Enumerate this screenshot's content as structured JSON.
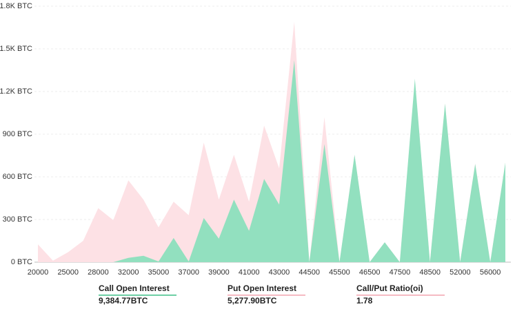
{
  "chart_data": {
    "type": "area",
    "categories": [
      "20000",
      null,
      "25000",
      null,
      "28000",
      null,
      "32000",
      null,
      "35000",
      null,
      "37000",
      null,
      "39000",
      null,
      "41000",
      null,
      "43000",
      null,
      "44500",
      null,
      "45500",
      null,
      "46500",
      null,
      "47500",
      null,
      "48500",
      null,
      "52000",
      null,
      "56000",
      null
    ],
    "series": [
      {
        "name": "Put Open Interest",
        "color": "#fde1e5",
        "total": "5,277.90BTC",
        "values": [
          125,
          10,
          70,
          150,
          380,
          295,
          575,
          440,
          245,
          425,
          330,
          840,
          440,
          755,
          425,
          960,
          660,
          1690,
          0,
          1020,
          0,
          755,
          0,
          140,
          0,
          1270,
          0,
          1115,
          0,
          695,
          0,
          700
        ]
      },
      {
        "name": "Call Open Interest",
        "color": "#92e0bf",
        "total": "9,384.77BTC",
        "values": [
          0,
          0,
          0,
          0,
          0,
          0,
          30,
          45,
          5,
          170,
          5,
          310,
          165,
          440,
          220,
          585,
          405,
          1420,
          0,
          830,
          0,
          755,
          0,
          140,
          0,
          1290,
          0,
          1115,
          0,
          690,
          0,
          700
        ]
      }
    ],
    "ratio": {
      "label": "Call/Put Ratio(oi)",
      "value": 1.78
    },
    "ylim": [
      0,
      1800
    ],
    "yticks": [
      {
        "value": 0,
        "label": "0 BTC"
      },
      {
        "value": 300,
        "label": "300 BTC"
      },
      {
        "value": 600,
        "label": "600 BTC"
      },
      {
        "value": 900,
        "label": "900 BTC"
      },
      {
        "value": 1200,
        "label": "1.2K BTC"
      },
      {
        "value": 1500,
        "label": "1.5K BTC"
      },
      {
        "value": 1800,
        "label": "1.8K BTC"
      }
    ],
    "grid": true
  }
}
